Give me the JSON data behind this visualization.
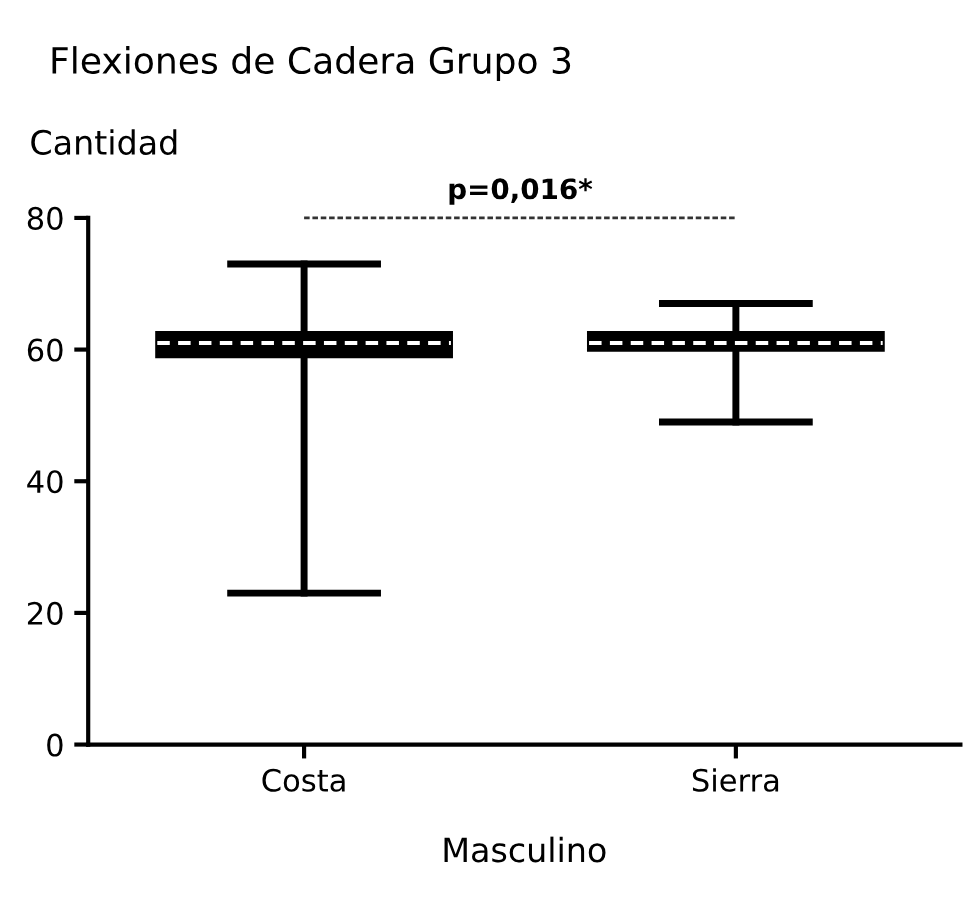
{
  "chart_data": {
    "type": "box",
    "title": "Flexiones de Cadera Grupo 3",
    "ylabel": "Cantidad",
    "xlabel": "Masculino",
    "categories": [
      "Costa",
      "Sierra"
    ],
    "boxes": [
      {
        "low": 23,
        "q1": 59,
        "median": 61,
        "q3": 62.5,
        "high": 73
      },
      {
        "low": 49,
        "q1": 60,
        "median": 61,
        "q3": 62.5,
        "high": 67
      }
    ],
    "color": "#000000",
    "ylim": [
      0,
      80
    ],
    "yticks": [
      0,
      20,
      40,
      60,
      80
    ],
    "grid": false,
    "annotations": [
      "p=0,016*"
    ]
  }
}
